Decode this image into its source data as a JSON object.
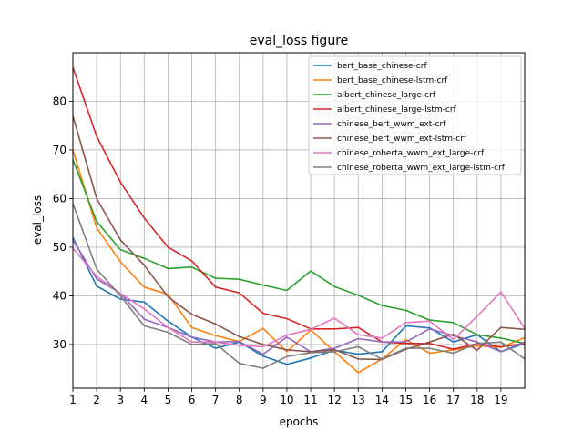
{
  "chart_data": {
    "type": "line",
    "title": "eval_loss figure",
    "xlabel": "epochs",
    "ylabel": "eval_loss",
    "xlim": [
      1,
      20
    ],
    "ylim": [
      21,
      90
    ],
    "x_ticks": [
      1,
      2,
      3,
      4,
      5,
      6,
      7,
      8,
      9,
      10,
      11,
      12,
      13,
      14,
      15,
      16,
      17,
      18,
      19
    ],
    "y_ticks": [
      30,
      40,
      50,
      60,
      70,
      80
    ],
    "grid": true,
    "legend_position": "top-right",
    "x": [
      1,
      2,
      3,
      4,
      5,
      6,
      7,
      8,
      9,
      10,
      11,
      12,
      13,
      14,
      15,
      16,
      17,
      18,
      19,
      20
    ],
    "series": [
      {
        "name": "bert_base_chinese-crf",
        "color": "#1f77b4",
        "values": [
          52.0,
          42.0,
          39.3,
          38.7,
          34.8,
          31.5,
          29.2,
          30.5,
          27.6,
          25.9,
          27.2,
          28.8,
          28.0,
          28.5,
          33.8,
          33.4,
          30.5,
          32.0,
          28.5,
          30.2
        ]
      },
      {
        "name": "bert_base_chinese-lstm-crf",
        "color": "#ff7f0e",
        "values": [
          70.0,
          54.0,
          47.0,
          41.8,
          40.3,
          33.5,
          31.8,
          30.6,
          33.3,
          28.5,
          33.0,
          28.5,
          24.2,
          27.0,
          31.0,
          28.2,
          28.9,
          29.7,
          29.4,
          31.4
        ]
      },
      {
        "name": "albert_chinese_large-crf",
        "color": "#2ca02c",
        "values": [
          68.0,
          55.3,
          49.5,
          47.7,
          45.6,
          45.9,
          43.6,
          43.4,
          42.2,
          41.1,
          45.1,
          41.9,
          40.1,
          38.0,
          37.0,
          35.0,
          34.5,
          32.0,
          31.3,
          30.2
        ]
      },
      {
        "name": "albert_chinese_large-lstm-crf",
        "color": "#d62728",
        "values": [
          87.0,
          72.8,
          63.4,
          56.0,
          50.0,
          47.2,
          41.8,
          40.6,
          36.4,
          35.3,
          33.2,
          33.2,
          33.5,
          30.5,
          30.2,
          30.2,
          29.0,
          30.2,
          29.5,
          30.2
        ]
      },
      {
        "name": "chinese_bert_wwm_ext-crf",
        "color": "#9467bd",
        "values": [
          51.5,
          43.5,
          40.5,
          35.2,
          33.5,
          31.5,
          30.5,
          30.6,
          28.0,
          31.5,
          28.5,
          29.2,
          31.2,
          30.5,
          30.5,
          33.2,
          31.8,
          30.5,
          28.5,
          30.5
        ]
      },
      {
        "name": "chinese_bert_wwm_ext-lstm-crf",
        "color": "#8c564b",
        "values": [
          77.0,
          60.0,
          51.5,
          46.3,
          39.8,
          36.2,
          34.2,
          31.6,
          30.0,
          28.9,
          28.5,
          28.9,
          27.0,
          26.9,
          29.0,
          30.5,
          32.1,
          28.8,
          33.5,
          33.1
        ]
      },
      {
        "name": "chinese_roberta_wwm_ext_large-crf",
        "color": "#e377c2",
        "values": [
          49.8,
          44.0,
          40.5,
          37.3,
          33.5,
          30.5,
          30.5,
          29.8,
          29.5,
          31.9,
          33.1,
          35.4,
          32.0,
          31.3,
          34.5,
          34.8,
          31.0,
          35.8,
          40.8,
          33.3
        ]
      },
      {
        "name": "chinese_roberta_wwm_ext_large-lstm-crf",
        "color": "#7f7f7f",
        "values": [
          59.0,
          45.5,
          40.0,
          33.8,
          32.5,
          30.0,
          30.2,
          26.1,
          25.1,
          27.5,
          28.3,
          28.5,
          29.5,
          27.0,
          29.2,
          29.2,
          28.2,
          30.2,
          30.5,
          27.0
        ]
      }
    ]
  }
}
